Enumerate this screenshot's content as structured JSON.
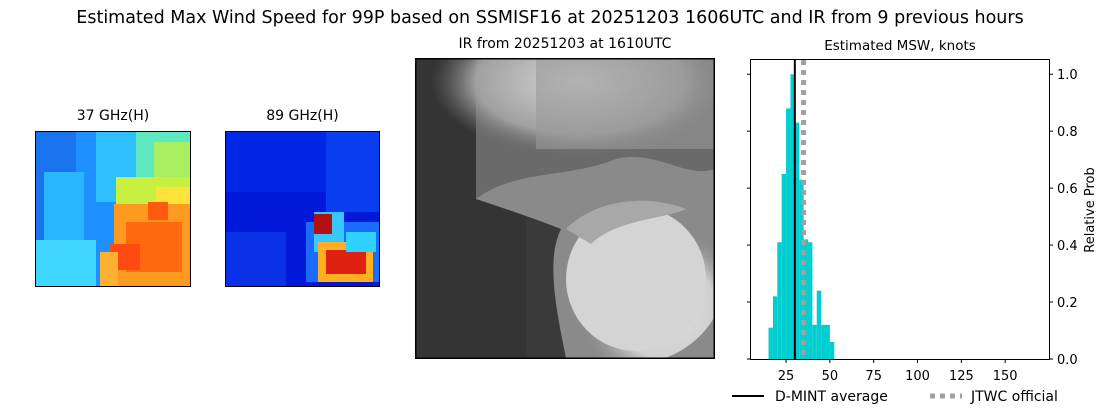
{
  "figure": {
    "title": "Estimated Max Wind Speed for 99P based on SSMISF16 at 20251203 1606UTC and IR from 9 previous hours"
  },
  "panels": {
    "mw37_title": "37 GHz(H)",
    "mw89_title": "89 GHz(H)",
    "ir_title": "IR from 20251203 at 1610UTC",
    "hist_title": "Estimated MSW, knots"
  },
  "colors": {
    "bars": "#00CED1",
    "dmint_line": "#000000",
    "jtwc_line": "#A0A0A0"
  },
  "chart_data": {
    "type": "bar",
    "title": "Estimated MSW, knots",
    "xlabel": "",
    "ylabel": "Relative Prob",
    "xlim": [
      5,
      175
    ],
    "ylim": [
      0,
      1.05
    ],
    "x_ticks": [
      25,
      50,
      75,
      100,
      125,
      150
    ],
    "y_ticks": [
      0.0,
      0.2,
      0.4,
      0.6,
      0.8,
      1.0
    ],
    "y_tick_labels": [
      "0.0",
      "0.2",
      "0.4",
      "0.6",
      "0.8",
      "1.0"
    ],
    "y_axis_side": "right",
    "bin_width": 2.5,
    "bins": [
      {
        "x0": 15,
        "x1": 17.5,
        "value": 0.11
      },
      {
        "x0": 17.5,
        "x1": 20,
        "value": 0.22
      },
      {
        "x0": 20,
        "x1": 22.5,
        "value": 0.41
      },
      {
        "x0": 22.5,
        "x1": 25,
        "value": 0.65
      },
      {
        "x0": 25,
        "x1": 27.5,
        "value": 0.88
      },
      {
        "x0": 27.5,
        "x1": 30,
        "value": 1.0
      },
      {
        "x0": 30,
        "x1": 32.5,
        "value": 0.83
      },
      {
        "x0": 32.5,
        "x1": 35,
        "value": 0.63
      },
      {
        "x0": 35,
        "x1": 37.5,
        "value": 0.42
      },
      {
        "x0": 37.5,
        "x1": 40,
        "value": 0.41
      },
      {
        "x0": 40,
        "x1": 42.5,
        "value": 0.12
      },
      {
        "x0": 42.5,
        "x1": 45,
        "value": 0.24
      },
      {
        "x0": 45,
        "x1": 47.5,
        "value": 0.12
      },
      {
        "x0": 47.5,
        "x1": 50,
        "value": 0.12
      },
      {
        "x0": 50,
        "x1": 52.5,
        "value": 0.06
      }
    ],
    "dmint_average": 30,
    "jtwc_official": 35,
    "legend": [
      "D-MINT average",
      "JTWC official"
    ],
    "legend_position": "bottom"
  }
}
